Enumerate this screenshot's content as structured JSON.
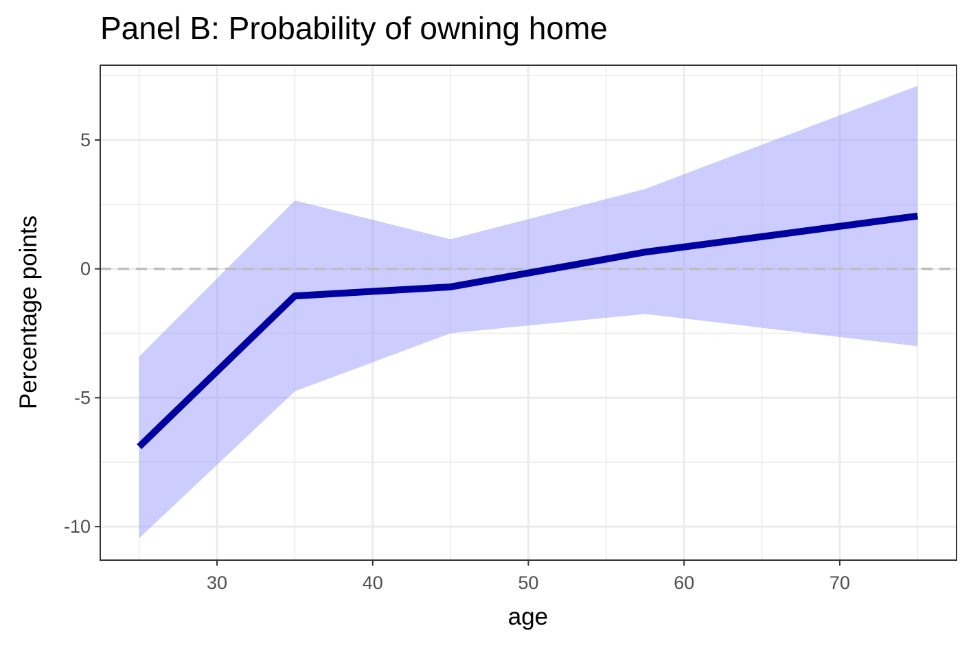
{
  "chart_data": {
    "type": "line",
    "title": "Panel B: Probability of owning home",
    "xlabel": "age",
    "ylabel": "Percentage points",
    "xlim": [
      22.5,
      77.5
    ],
    "ylim": [
      -11.3,
      7.9
    ],
    "x_ticks": [
      30,
      40,
      50,
      60,
      70
    ],
    "x_minor_ticks": [
      25,
      35,
      45,
      55,
      65,
      75
    ],
    "y_ticks": [
      -10,
      -5,
      0,
      5
    ],
    "y_minor_ticks": [
      -7.5,
      -2.5,
      2.5,
      7.5
    ],
    "x_tick_labels": [
      "30",
      "40",
      "50",
      "60",
      "70"
    ],
    "y_tick_labels": [
      "-10",
      "-5",
      "0",
      "5"
    ],
    "reference_line": {
      "y": 0,
      "style": "dashed",
      "color": "#bebebe"
    },
    "series": [
      {
        "x": [
          25,
          35,
          45,
          57.5,
          75
        ],
        "values": [
          -6.9,
          -1.05,
          -0.7,
          0.65,
          2.05
        ],
        "lower": [
          -10.45,
          -4.75,
          -2.5,
          -1.75,
          -3.0
        ],
        "upper": [
          -3.4,
          2.65,
          1.15,
          3.1,
          7.1
        ],
        "line_color": "#0000a0",
        "band_color": "#9999ff"
      }
    ],
    "grid": true,
    "legend": "none"
  }
}
